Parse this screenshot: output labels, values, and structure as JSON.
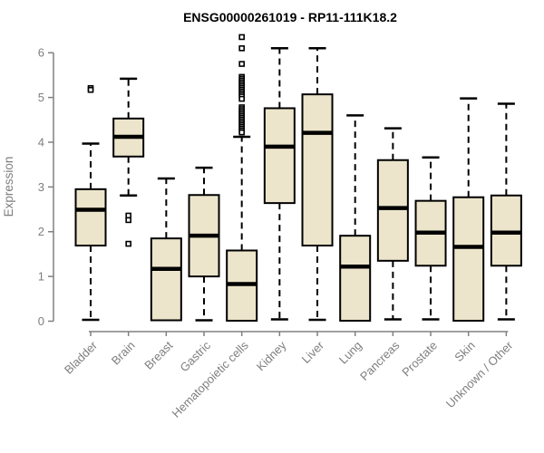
{
  "chart_data": {
    "type": "box",
    "title": "ENSG00000261019 - RP11-111K18.2",
    "xlabel": "",
    "ylabel": "Expression",
    "ylim": [
      0,
      6
    ],
    "yticks": [
      0,
      1,
      2,
      3,
      4,
      5,
      6
    ],
    "grid": false,
    "legend": "none",
    "categories": [
      "Bladder",
      "Brain",
      "Breast",
      "Gastric",
      "Hematopoietic cells",
      "Kidney",
      "Liver",
      "Lung",
      "Pancreas",
      "Prostate",
      "Skin",
      "Unknown / Other"
    ],
    "series": [
      {
        "category": "Bladder",
        "low": 0.03,
        "q1": 1.69,
        "median": 2.49,
        "q3": 2.95,
        "high": 3.97,
        "outliers": [
          5.21,
          5.17
        ]
      },
      {
        "category": "Brain",
        "low": 2.81,
        "q1": 3.68,
        "median": 4.12,
        "q3": 4.53,
        "high": 5.42,
        "outliers": [
          2.36,
          2.26,
          1.73
        ]
      },
      {
        "category": "Breast",
        "low": 0.02,
        "q1": 0.02,
        "median": 1.17,
        "q3": 1.85,
        "high": 3.19,
        "outliers": []
      },
      {
        "category": "Gastric",
        "low": 0.02,
        "q1": 1.0,
        "median": 1.91,
        "q3": 2.82,
        "high": 3.43,
        "outliers": []
      },
      {
        "category": "Hematopoietic cells",
        "low": 0.01,
        "q1": 0.01,
        "median": 0.83,
        "q3": 1.58,
        "high": 4.12,
        "outliers": [
          6.35,
          6.1,
          5.75,
          5.46,
          5.42,
          5.38,
          5.34,
          5.3,
          5.26,
          5.22,
          5.18,
          5.14,
          5.1,
          5.06,
          5.02,
          4.97,
          4.78,
          4.74,
          4.7,
          4.66,
          4.62,
          4.58,
          4.54,
          4.5,
          4.46,
          4.42,
          4.38,
          4.34,
          4.3,
          4.26,
          4.22
        ]
      },
      {
        "category": "Kidney",
        "low": 0.04,
        "q1": 2.64,
        "median": 3.9,
        "q3": 4.76,
        "high": 6.1,
        "outliers": []
      },
      {
        "category": "Liver",
        "low": 0.03,
        "q1": 1.69,
        "median": 4.21,
        "q3": 5.07,
        "high": 6.1,
        "outliers": []
      },
      {
        "category": "Lung",
        "low": 0.01,
        "q1": 0.01,
        "median": 1.22,
        "q3": 1.91,
        "high": 4.6,
        "outliers": []
      },
      {
        "category": "Pancreas",
        "low": 0.04,
        "q1": 1.35,
        "median": 2.53,
        "q3": 3.6,
        "high": 4.31,
        "outliers": []
      },
      {
        "category": "Prostate",
        "low": 0.04,
        "q1": 1.24,
        "median": 1.98,
        "q3": 2.69,
        "high": 3.66,
        "outliers": []
      },
      {
        "category": "Skin",
        "low": 0.01,
        "q1": 0.01,
        "median": 1.66,
        "q3": 2.77,
        "high": 4.98,
        "outliers": []
      },
      {
        "category": "Unknown / Other",
        "low": 0.04,
        "q1": 1.24,
        "median": 1.98,
        "q3": 2.81,
        "high": 4.86,
        "outliers": []
      }
    ],
    "colors": {
      "box_fill": "#ECE5CB",
      "box_stroke": "#000000",
      "median": "#000000",
      "whisker": "#000000",
      "outlier": "#000000",
      "axis": "#808080",
      "axis_text": "#7E7E7E",
      "title_text": "#000000",
      "background": "#FFFFFF"
    }
  }
}
